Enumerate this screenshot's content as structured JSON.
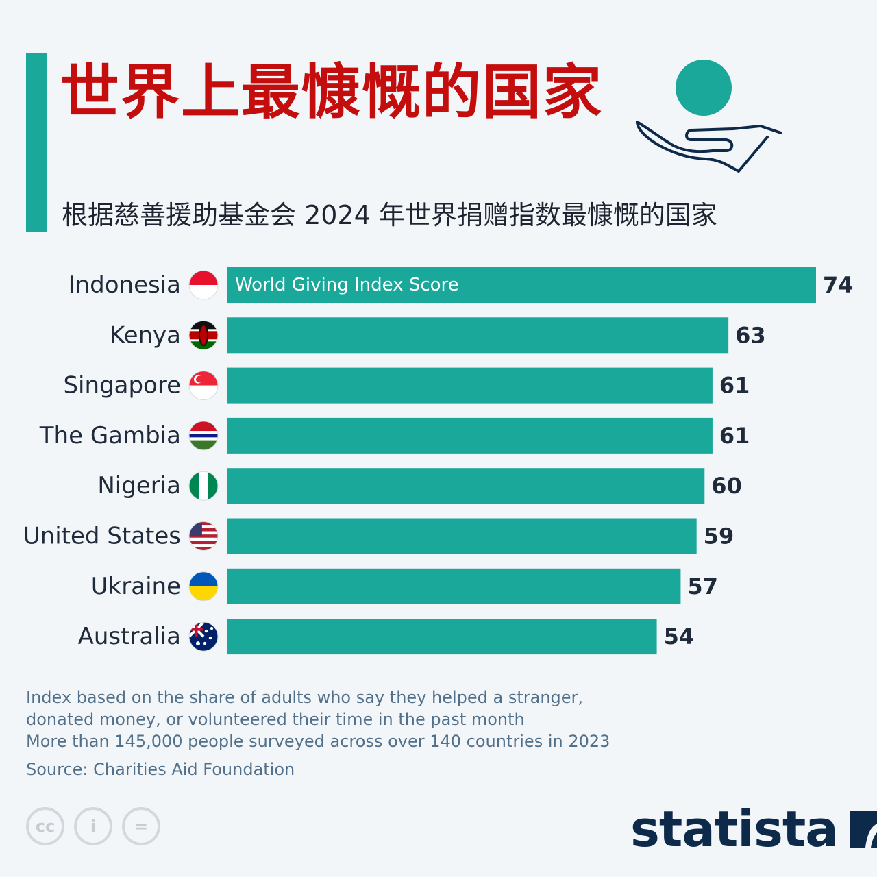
{
  "header": {
    "title": "世界上最慷慨的国家",
    "subtitle": "根据慈善援助基金会 2024 年世界捐赠指数最慷慨的国家"
  },
  "colors": {
    "accent": "#1aa89a",
    "title": "#c40e0e",
    "text": "#1f2a3a",
    "note": "#52708a",
    "brand": "#0e2a4a"
  },
  "icons": {
    "header_icon": "hand-holding-coin-icon",
    "license_icons": [
      "cc-icon",
      "attribution-icon",
      "no-derivatives-icon"
    ],
    "logo_icon": "statista-mark-icon"
  },
  "chart_data": {
    "type": "bar",
    "orientation": "horizontal",
    "categories": [
      "Indonesia",
      "Kenya",
      "Singapore",
      "The Gambia",
      "Nigeria",
      "United States",
      "Ukraine",
      "Australia"
    ],
    "flags": [
      "indonesia-flag-icon",
      "kenya-flag-icon",
      "singapore-flag-icon",
      "gambia-flag-icon",
      "nigeria-flag-icon",
      "united-states-flag-icon",
      "ukraine-flag-icon",
      "australia-flag-icon"
    ],
    "series": [
      {
        "name": "World Giving Index Score",
        "values": [
          74,
          63,
          61,
          61,
          60,
          59,
          57,
          54
        ]
      }
    ],
    "xlim": [
      0,
      74
    ],
    "grid": false,
    "legend": "inside first bar"
  },
  "footer": {
    "notes": [
      "Index based on the share of adults who say they helped a stranger,",
      "donated money, or volunteered their time in the past month",
      "More than 145,000 people surveyed across over 140 countries in 2023"
    ],
    "source": "Source: Charities Aid Foundation",
    "license_labels": [
      "cc",
      "i",
      "="
    ],
    "brand": "statista"
  }
}
